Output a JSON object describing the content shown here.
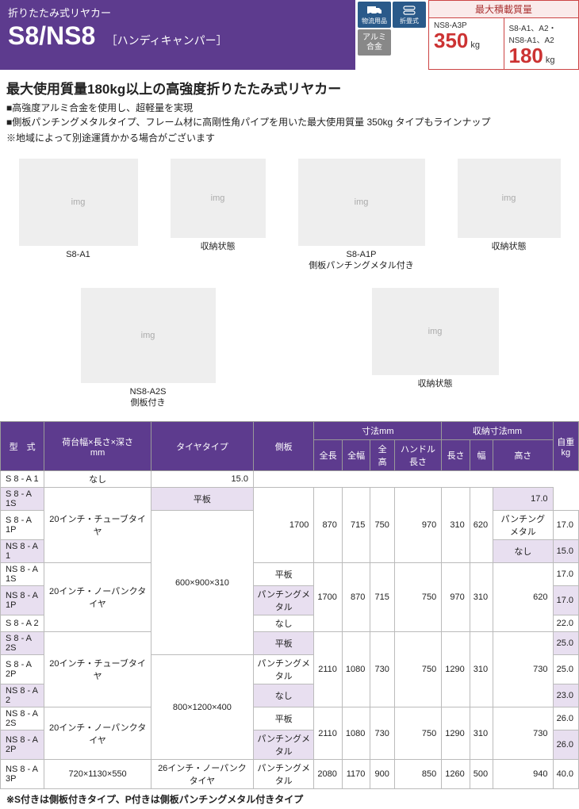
{
  "header": {
    "category": "折りたたみ式リヤカー",
    "model": "S8/NS8",
    "subtitle": "［ハンディキャンパー］"
  },
  "badges": {
    "logistics": "物流用品",
    "foldable": "折畳式",
    "aluminum": "アルミ\n合金"
  },
  "load": {
    "title": "最大積載質量",
    "cell1": {
      "label": "NS8-A3P",
      "value": "350",
      "unit": "kg"
    },
    "cell2": {
      "label": "S8-A1、A2・\nNS8-A1、A2",
      "value": "180",
      "unit": "kg"
    }
  },
  "headline": "最大使用質量180kg以上の高強度折りたたみ式リヤカー",
  "desc1": "高強度アルミ合金を使用し、超軽量を実現",
  "desc2": "側板パンチングメタルタイプ、フレーム材に高剛性角パイプを用いた最大使用質量 350kg タイプもラインナップ",
  "note": "※地域によって別途運賃かかる場合がございます",
  "imgcaps": {
    "c1": "S8-A1",
    "c2": "収納状態",
    "c3": "S8-A1P\n側板パンチングメタル付き",
    "c4": "収納状態",
    "c5": "NS8-A2S\n側板付き",
    "c6": "収納状態"
  },
  "table": {
    "head": {
      "model": "型　式",
      "platform": "荷台幅×長さ×深さ\nmm",
      "tyre": "タイヤタイプ",
      "side": "側板",
      "dims": "寸法mm",
      "dims_sub": [
        "全長",
        "全幅",
        "全高",
        "ハンドル長さ"
      ],
      "folded": "収納寸法mm",
      "folded_sub": [
        "長さ",
        "幅",
        "高さ"
      ],
      "weight": "自重\nkg"
    },
    "rows": [
      {
        "m": "S 8 - A 1",
        "p": "",
        "t": "",
        "s": "なし",
        "d": [
          "",
          "",
          "",
          ""
        ],
        "f": [
          "",
          "",
          ""
        ],
        "w": "15.0",
        "shade": false
      },
      {
        "m": "S 8 - A 1S",
        "p": "",
        "t": "20インチ・チューブタイヤ",
        "s": "平板",
        "d": [
          "1700",
          "870",
          "715",
          "750"
        ],
        "f": [
          "970",
          "310",
          "620"
        ],
        "w": "17.0",
        "shade": true
      },
      {
        "m": "S 8 - A 1P",
        "p": "600×900×310",
        "t": "",
        "s": "パンチングメタル",
        "d": [
          "",
          "",
          "",
          ""
        ],
        "f": [
          "",
          "",
          ""
        ],
        "w": "17.0",
        "shade": false
      },
      {
        "m": "NS 8 - A 1",
        "p": "",
        "t": "",
        "s": "なし",
        "d": [
          "",
          "",
          "",
          ""
        ],
        "f": [
          "",
          "",
          ""
        ],
        "w": "15.0",
        "shade": true
      },
      {
        "m": "NS 8 - A 1S",
        "p": "",
        "t": "20インチ・ノーパンクタイヤ",
        "s": "平板",
        "d": [
          "1700",
          "870",
          "715",
          "750"
        ],
        "f": [
          "970",
          "310",
          "620"
        ],
        "w": "17.0",
        "shade": false
      },
      {
        "m": "NS 8 - A 1P",
        "p": "",
        "t": "",
        "s": "パンチングメタル",
        "d": [
          "",
          "",
          "",
          ""
        ],
        "f": [
          "",
          "",
          ""
        ],
        "w": "17.0",
        "shade": true
      },
      {
        "m": "S 8 - A 2",
        "p": "",
        "t": "",
        "s": "なし",
        "d": [
          "",
          "",
          "",
          ""
        ],
        "f": [
          "",
          "",
          ""
        ],
        "w": "22.0",
        "shade": false
      },
      {
        "m": "S 8 - A 2S",
        "p": "",
        "t": "20インチ・チューブタイヤ",
        "s": "平板",
        "d": [
          "2110",
          "1080",
          "730",
          "750"
        ],
        "f": [
          "1290",
          "310",
          "730"
        ],
        "w": "25.0",
        "shade": true
      },
      {
        "m": "S 8 - A 2P",
        "p": "800×1200×400",
        "t": "",
        "s": "パンチングメタル",
        "d": [
          "",
          "",
          "",
          ""
        ],
        "f": [
          "",
          "",
          ""
        ],
        "w": "25.0",
        "shade": false
      },
      {
        "m": "NS 8 - A 2",
        "p": "",
        "t": "",
        "s": "なし",
        "d": [
          "",
          "",
          "",
          ""
        ],
        "f": [
          "",
          "",
          ""
        ],
        "w": "23.0",
        "shade": true
      },
      {
        "m": "NS 8 - A 2S",
        "p": "",
        "t": "20インチ・ノーパンクタイヤ",
        "s": "平板",
        "d": [
          "2110",
          "1080",
          "730",
          "750"
        ],
        "f": [
          "1290",
          "310",
          "730"
        ],
        "w": "26.0",
        "shade": false
      },
      {
        "m": "NS 8 - A 2P",
        "p": "",
        "t": "",
        "s": "パンチングメタル",
        "d": [
          "",
          "",
          "",
          ""
        ],
        "f": [
          "",
          "",
          ""
        ],
        "w": "26.0",
        "shade": true
      },
      {
        "m": "NS 8 - A 3P",
        "p": "720×1130×550",
        "t": "26インチ・ノーパンクタイヤ",
        "s": "パンチングメタル",
        "d": [
          "2080",
          "1170",
          "900",
          "850"
        ],
        "f": [
          "1260",
          "500",
          "940"
        ],
        "w": "40.0",
        "shade": false
      }
    ]
  },
  "footnote": "※S付きは側板付きタイプ、P付きは側板パンチングメタル付きタイプ",
  "colors": {
    "purple": "#5d3b8e",
    "red": "#c33",
    "shade": "#e8dff0"
  }
}
